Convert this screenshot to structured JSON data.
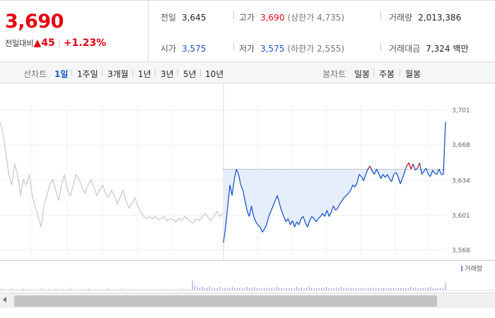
{
  "quote": {
    "price": "3,690",
    "change_label": "전일대비",
    "change_arrow": "▲",
    "change_value": "45",
    "change_pct": "+1.23%"
  },
  "stats": {
    "prev_close_label": "전일",
    "prev_close": "3,645",
    "high_label": "고가",
    "high": "3,690",
    "upper_limit": "(상한가 4,735)",
    "volume_label": "거래량",
    "volume": "2,013,386",
    "open_label": "시가",
    "open": "3,575",
    "low_label": "저가",
    "low": "3,575",
    "lower_limit": "(하한가 2,555)",
    "trade_value_label": "거래대금",
    "trade_value": "7,324",
    "trade_value_unit": "백만"
  },
  "toolbar": {
    "line_chart_label": "선차트",
    "line_ranges": [
      "1일",
      "1주일",
      "3개월",
      "1년",
      "3년",
      "5년",
      "10년"
    ],
    "active_range": "1일",
    "candle_chart_label": "봉차트",
    "candle_ranges": [
      "일봉",
      "주봉",
      "월봉"
    ]
  },
  "volume_legend": "거래량",
  "colors": {
    "up": "#e60012",
    "down": "#1a56c7",
    "area": "#e6eefb",
    "prev_day": "#c8c8c8"
  },
  "chart_data": {
    "type": "line",
    "title": "",
    "xlabel": "",
    "ylabel": "",
    "ylim": [
      3560,
      3710
    ],
    "y_ticks": [
      "3,701",
      "3,668",
      "3,634",
      "3,601",
      "3,568"
    ],
    "y_tick_values": [
      3701,
      3668,
      3634,
      3601,
      3568
    ],
    "reference_price": 3645,
    "series": [
      {
        "values": [
          3690,
          3680,
          3660,
          3640,
          3630,
          3650,
          3640,
          3620,
          3635,
          3630,
          3640,
          3620,
          3610,
          3600,
          3590,
          3610,
          3620,
          3630,
          3635,
          3625,
          3615,
          3630,
          3640,
          3625,
          3620,
          3630,
          3640,
          3635,
          3628,
          3622,
          3630,
          3635,
          3628,
          3620,
          3625,
          3630,
          3622,
          3618,
          3625,
          3620,
          3612,
          3618,
          3625,
          3615,
          3608,
          3612,
          3618,
          3610,
          3605,
          3600,
          3598,
          3600,
          3598,
          3600,
          3597,
          3598,
          3600,
          3596,
          3598,
          3597,
          3595,
          3598,
          3596,
          3600,
          3598,
          3595,
          3594,
          3598,
          3596,
          3600,
          3603,
          3599,
          3596,
          3600,
          3605,
          3600,
          3603
        ]
      },
      {
        "values": [
          3575,
          3590,
          3610,
          3630,
          3620,
          3635,
          3645,
          3640,
          3630,
          3625,
          3615,
          3605,
          3600,
          3610,
          3600,
          3595,
          3592,
          3590,
          3585,
          3588,
          3592,
          3600,
          3605,
          3610,
          3615,
          3620,
          3612,
          3605,
          3600,
          3595,
          3598,
          3592,
          3596,
          3590,
          3595,
          3592,
          3598,
          3600,
          3594,
          3590,
          3596,
          3600,
          3598,
          3595,
          3598,
          3600,
          3603,
          3600,
          3606,
          3600,
          3604,
          3610,
          3606,
          3608,
          3612,
          3615,
          3618,
          3620,
          3622,
          3625,
          3630,
          3628,
          3632,
          3640,
          3638,
          3634,
          3640,
          3645,
          3648,
          3643,
          3640,
          3645,
          3641,
          3636,
          3640,
          3637,
          3640,
          3636,
          3633,
          3640,
          3642,
          3638,
          3631,
          3636,
          3642,
          3648,
          3651,
          3645,
          3650,
          3644,
          3646,
          3651,
          3640,
          3643,
          3646,
          3640,
          3638,
          3644,
          3641,
          3640,
          3645,
          3640,
          3640,
          3690
        ]
      }
    ],
    "volume": [
      2,
      1,
      1,
      1,
      2,
      1,
      1,
      1,
      1,
      2,
      1,
      1,
      1,
      1,
      1,
      1,
      2,
      1,
      1,
      1,
      1,
      1,
      2,
      1,
      1,
      1,
      1,
      1,
      2,
      1,
      1,
      1,
      1,
      1,
      1,
      2,
      1,
      1,
      1,
      1,
      1,
      1,
      1,
      2,
      1,
      1,
      1,
      1,
      1,
      2,
      1,
      1,
      1,
      1,
      1,
      1,
      1,
      1,
      1,
      1,
      1,
      1,
      1,
      1,
      1,
      1,
      1,
      1,
      1,
      1,
      1,
      1,
      1,
      2,
      1,
      1,
      1,
      8,
      4,
      3,
      2,
      3,
      2,
      2,
      3,
      2,
      2,
      2,
      3,
      2,
      2,
      2,
      2,
      3,
      2,
      2,
      2,
      2,
      2,
      3,
      2,
      2,
      3,
      2,
      2,
      2,
      2,
      2,
      2,
      2,
      2,
      3,
      2,
      2,
      2,
      2,
      2,
      2,
      2,
      3,
      2,
      2,
      2,
      2,
      3,
      2,
      2,
      2,
      2,
      2,
      2,
      3,
      2,
      2,
      2,
      2,
      2,
      3,
      2,
      2,
      2,
      2,
      2,
      2,
      2,
      2,
      2,
      2,
      2,
      2,
      2,
      2,
      2,
      2,
      2,
      2,
      2,
      2,
      2,
      2,
      2,
      2,
      2,
      2,
      2,
      3,
      2,
      2,
      2,
      2,
      2,
      2,
      2,
      3,
      2,
      2,
      2,
      2,
      2,
      6
    ]
  }
}
